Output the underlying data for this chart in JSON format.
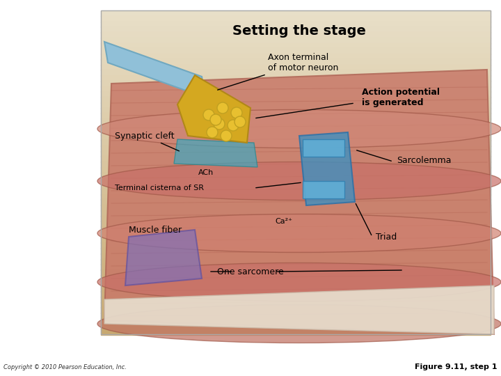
{
  "title": "Setting the stage",
  "bg_color": "#ffffff",
  "panel_bg_top": "#e8dfc8",
  "panel_bg_bottom": "#c8a870",
  "labels": {
    "axon_terminal": "Axon terminal\nof motor neuron",
    "action_potential": "Action potential\nis generated",
    "synaptic_cleft": "Synaptic cleft",
    "ach": "ACh",
    "terminal_cisterna": "Terminal cisterna of SR",
    "sarcolemma": "Sarcolemma",
    "muscle_fiber": "Muscle fiber",
    "ca2": "Ca²⁺",
    "triad": "Triad",
    "one_sarcomere": "One sarcomere"
  },
  "copyright": "Copyright © 2010 Pearson Education, Inc.",
  "figure_label": "Figure 9.11, step 1",
  "title_fontsize": 14,
  "label_fontsize": 9,
  "label_fontsize_small": 8
}
